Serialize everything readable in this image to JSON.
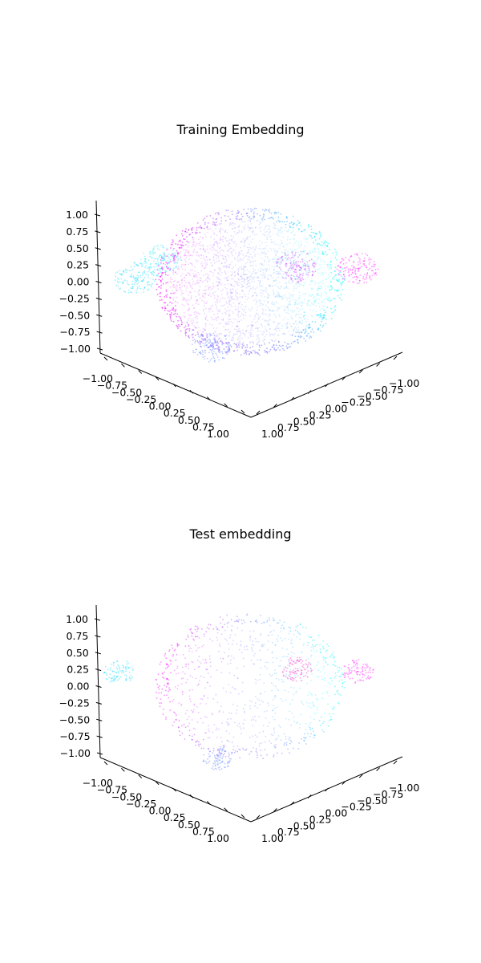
{
  "chart_data": [
    {
      "type": "scatter",
      "title": "Training Embedding",
      "projection": "3d",
      "grid": false,
      "shape": "unit sphere point cloud",
      "xlim": [
        -1.0,
        1.0
      ],
      "ylim": [
        -1.0,
        1.0
      ],
      "zlim": [
        -1.0,
        1.0
      ],
      "ticks": {
        "x": [
          "−1.00",
          "−0.75",
          "−0.50",
          "−0.25",
          "0.00",
          "0.25",
          "0.50",
          "0.75",
          "1.00"
        ],
        "y": [
          "−1.00",
          "−0.75",
          "−0.50",
          "−0.25",
          "0.00",
          "0.25",
          "0.50",
          "0.75",
          "1.00"
        ],
        "z": [
          "−1.00",
          "−0.75",
          "−0.50",
          "−0.25",
          "0.00",
          "0.25",
          "0.50",
          "0.75",
          "1.00"
        ]
      },
      "colormap": "cool",
      "colors": {
        "left": "#ff00ff",
        "right": "#00ffff",
        "bottom": "#8855ff"
      },
      "point_density": "dense",
      "clusters": [
        {
          "x": 0.8,
          "y": -0.6,
          "z": 0.3,
          "color": "#ff22ff"
        },
        {
          "x": -0.7,
          "y": 0.8,
          "z": 0.1,
          "color": "#22ddff"
        },
        {
          "x": 0.1,
          "y": 0.6,
          "z": -0.5,
          "color": "#6b8aff"
        },
        {
          "x": 0.5,
          "y": -0.1,
          "z": 0.45,
          "color": "#cc44ff"
        },
        {
          "x": -0.2,
          "y": 0.95,
          "z": 0.75,
          "color": "#33eeff"
        }
      ]
    },
    {
      "type": "scatter",
      "title": "Test embedding",
      "projection": "3d",
      "grid": false,
      "shape": "unit sphere point cloud",
      "xlim": [
        -1.0,
        1.0
      ],
      "ylim": [
        -1.0,
        1.0
      ],
      "zlim": [
        -1.0,
        1.0
      ],
      "ticks": {
        "x": [
          "−1.00",
          "−0.75",
          "−0.50",
          "−0.25",
          "0.00",
          "0.25",
          "0.50",
          "0.75",
          "1.00"
        ],
        "y": [
          "−1.00",
          "−0.75",
          "−0.50",
          "−0.25",
          "0.00",
          "0.25",
          "0.50",
          "0.75",
          "1.00"
        ],
        "z": [
          "−1.00",
          "−0.75",
          "−0.50",
          "−0.25",
          "0.00",
          "0.25",
          "0.50",
          "0.75",
          "1.00"
        ]
      },
      "colormap": "cool",
      "colors": {
        "left": "#ff00ff",
        "right": "#00ffff",
        "bottom": "#8855ff"
      },
      "point_density": "sparse",
      "clusters": [
        {
          "x": 0.7,
          "y": -0.7,
          "z": 0.2,
          "color": "#ff22ff"
        },
        {
          "x": 0.4,
          "y": -0.2,
          "z": 0.35,
          "color": "#ff33cc"
        },
        {
          "x": -0.8,
          "y": 0.9,
          "z": 0.25,
          "color": "#22ddff"
        },
        {
          "x": 0.2,
          "y": 0.6,
          "z": -0.55,
          "color": "#6b8aff"
        }
      ]
    }
  ]
}
